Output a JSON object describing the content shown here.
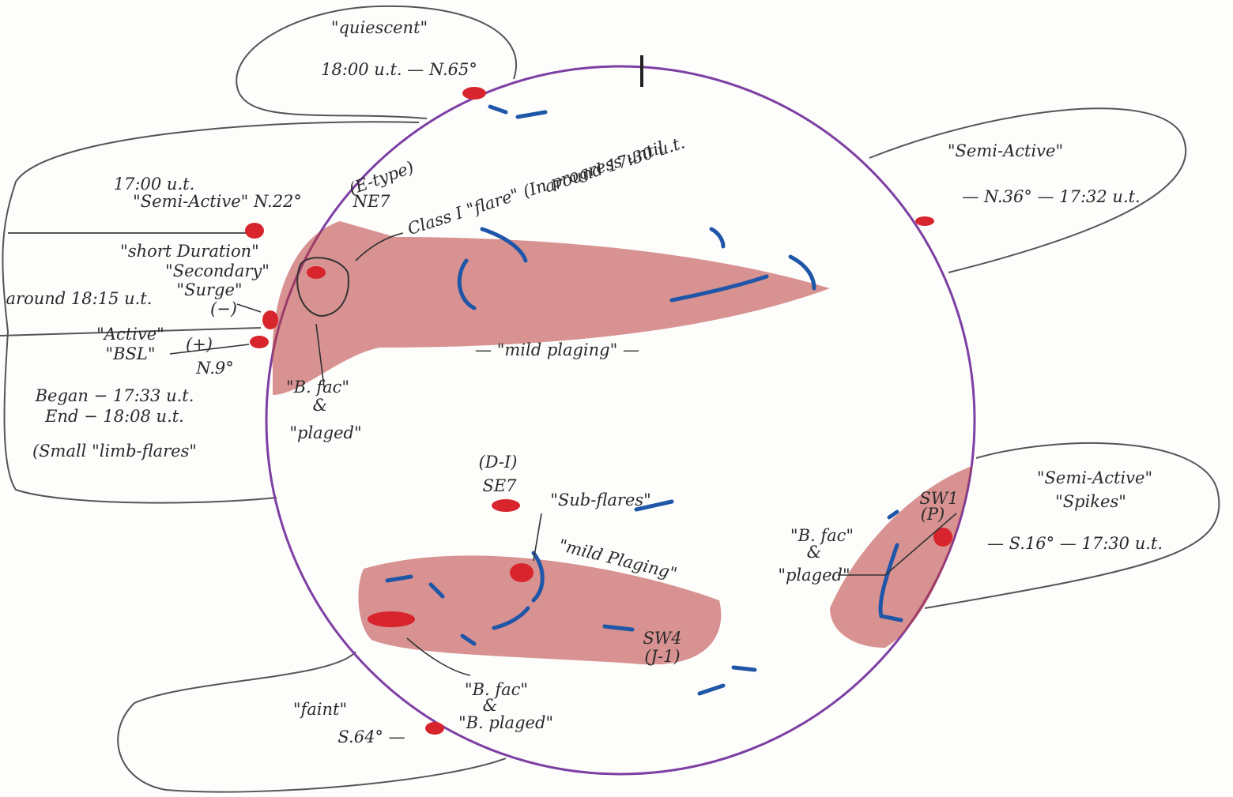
{
  "annotations": [
    "\"quiescent\"",
    "18:00 u.t. — N.65°",
    "17:00 u.t.",
    "\"Semi-Active\" N.22°",
    "(E-type)",
    "NE7",
    "Class I \"flare\" (In progress until",
    "around 17:30 u.t.",
    "\"short Duration\"",
    "\"Secondary\"",
    "around 18:15 u.t.",
    "\"Surge\"",
    "(−)",
    "\"Active\"",
    "\"BSL\"",
    "(+)",
    "N.9°",
    "Began − 17:33 u.t.",
    "End − 18:08 u.t.",
    "(Small \"limb-flares\"",
    "\"B. fac\"",
    "&",
    "\"plaged\"",
    "— \"mild plaging\" —",
    "\"Semi-Active\"",
    "— N.36° — 17:32 u.t.",
    "(D-I)",
    "SE7",
    "\"Sub-flares\"",
    "\"mild Plaging\"",
    "\"Semi-Active\"",
    "\"Spikes\"",
    "SW1",
    "(P)",
    "— S.16° — 17:30 u.t.",
    "\"B. fac\"",
    "&",
    "\"plaged\"",
    "SW4",
    "(J-1)",
    "\"B. fac\"",
    "&",
    "\"B. plaged\"",
    "\"faint\"",
    "S.64° —"
  ]
}
